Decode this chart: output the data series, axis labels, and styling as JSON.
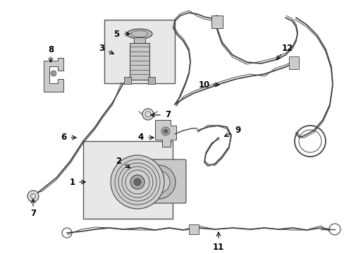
{
  "background_color": "#ffffff",
  "line_color": "#444444",
  "label_color": "#000000",
  "box_fill": "#e8e8e8",
  "figsize": [
    4.89,
    3.6
  ],
  "dpi": 100
}
